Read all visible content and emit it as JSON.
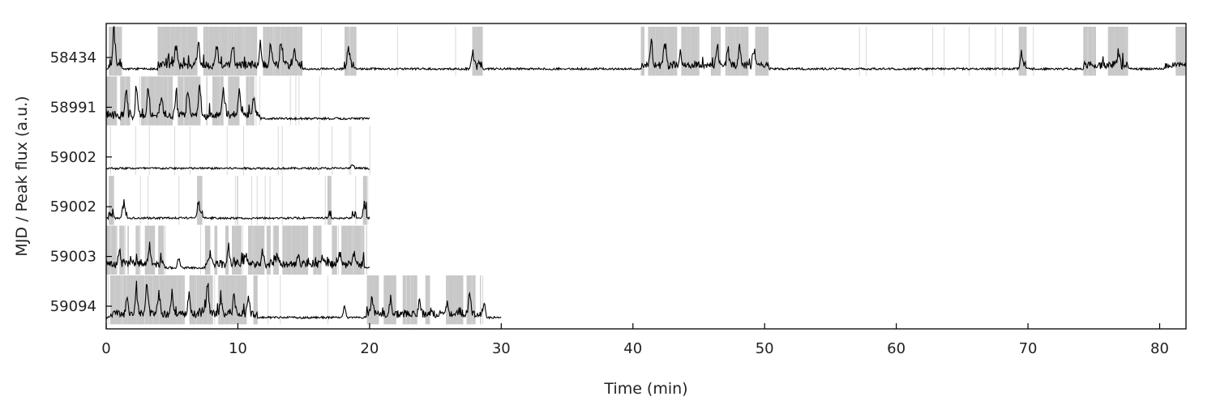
{
  "chart_data": {
    "type": "line",
    "xlabel": "Time (min)",
    "ylabel": "MJD / Peak flux (a.u.)",
    "xlim": [
      0,
      82
    ],
    "x_ticks": [
      0,
      10,
      20,
      30,
      40,
      50,
      60,
      70,
      80
    ],
    "grid": false,
    "colors": {
      "line": "#000000",
      "band": "#c8c8c8"
    },
    "series": [
      {
        "name": "58434",
        "duration_min": 82,
        "active_spans_min": [
          [
            0.2,
            1.2
          ],
          [
            3.9,
            14.9
          ],
          [
            18.1,
            19.0
          ],
          [
            27.8,
            28.6
          ],
          [
            40.6,
            50.3
          ],
          [
            69.3,
            69.9
          ],
          [
            74.2,
            77.6
          ],
          [
            80.3,
            82.0
          ]
        ],
        "burst_peaks": [
          [
            0.6,
            0.95
          ],
          [
            5.3,
            0.55
          ],
          [
            7.0,
            0.6
          ],
          [
            8.4,
            0.5
          ],
          [
            9.6,
            0.55
          ],
          [
            11.7,
            0.6
          ],
          [
            12.5,
            0.55
          ],
          [
            13.3,
            0.7
          ],
          [
            14.3,
            0.45
          ],
          [
            18.4,
            0.55
          ],
          [
            27.8,
            0.4
          ],
          [
            41.4,
            0.7
          ],
          [
            42.4,
            0.6
          ],
          [
            43.6,
            0.45
          ],
          [
            46.4,
            0.55
          ],
          [
            47.2,
            0.4
          ],
          [
            48.1,
            0.55
          ],
          [
            49.2,
            0.5
          ],
          [
            69.5,
            0.3
          ],
          [
            76.9,
            0.3
          ]
        ]
      },
      {
        "name": "58991",
        "duration_min": 20,
        "active_spans_min": [
          [
            0.0,
            7.5
          ],
          [
            7.6,
            11.7
          ]
        ],
        "burst_peaks": [
          [
            1.5,
            0.65
          ],
          [
            2.3,
            0.8
          ],
          [
            3.2,
            0.7
          ],
          [
            4.2,
            0.55
          ],
          [
            5.3,
            0.6
          ],
          [
            6.2,
            0.75
          ],
          [
            7.1,
            0.9
          ],
          [
            8.9,
            0.7
          ],
          [
            10.1,
            0.8
          ],
          [
            11.2,
            0.55
          ]
        ]
      },
      {
        "name": "59002",
        "duration_min": 20,
        "active_spans_min": [],
        "burst_peaks": [
          [
            18.7,
            0.12
          ]
        ]
      },
      {
        "name": "59002",
        "duration_min": 20,
        "active_spans_min": [
          [
            0.2,
            0.6
          ],
          [
            1.2,
            1.6
          ],
          [
            6.9,
            7.3
          ],
          [
            16.8,
            17.1
          ],
          [
            18.7,
            19.0
          ],
          [
            19.5,
            19.8
          ]
        ],
        "burst_peaks": [
          [
            1.3,
            0.25
          ],
          [
            7.0,
            0.35
          ],
          [
            19.6,
            0.3
          ]
        ]
      },
      {
        "name": "59003",
        "duration_min": 20,
        "active_spans_min": [
          [
            0.0,
            4.4
          ],
          [
            7.5,
            19.6
          ]
        ],
        "burst_peaks": [
          [
            1.0,
            0.35
          ],
          [
            3.3,
            0.55
          ],
          [
            5.5,
            0.25
          ],
          [
            7.9,
            0.3
          ],
          [
            9.3,
            0.4
          ],
          [
            10.6,
            0.3
          ],
          [
            11.9,
            0.35
          ],
          [
            13.0,
            0.3
          ],
          [
            14.6,
            0.25
          ],
          [
            16.4,
            0.3
          ],
          [
            17.7,
            0.25
          ],
          [
            18.8,
            0.25
          ]
        ]
      },
      {
        "name": "59094",
        "duration_min": 30,
        "active_spans_min": [
          [
            0.3,
            11.5
          ],
          [
            19.8,
            28.6
          ]
        ],
        "burst_peaks": [
          [
            1.6,
            0.55
          ],
          [
            2.3,
            0.65
          ],
          [
            3.1,
            0.75
          ],
          [
            4.0,
            0.55
          ],
          [
            5.0,
            0.6
          ],
          [
            6.3,
            0.55
          ],
          [
            7.7,
            0.9
          ],
          [
            8.7,
            0.45
          ],
          [
            9.7,
            0.55
          ],
          [
            10.8,
            0.5
          ],
          [
            18.1,
            0.3
          ],
          [
            20.2,
            0.45
          ],
          [
            21.6,
            0.35
          ],
          [
            23.8,
            0.45
          ],
          [
            25.9,
            0.3
          ],
          [
            27.6,
            0.55
          ],
          [
            28.7,
            0.4
          ]
        ]
      }
    ]
  }
}
